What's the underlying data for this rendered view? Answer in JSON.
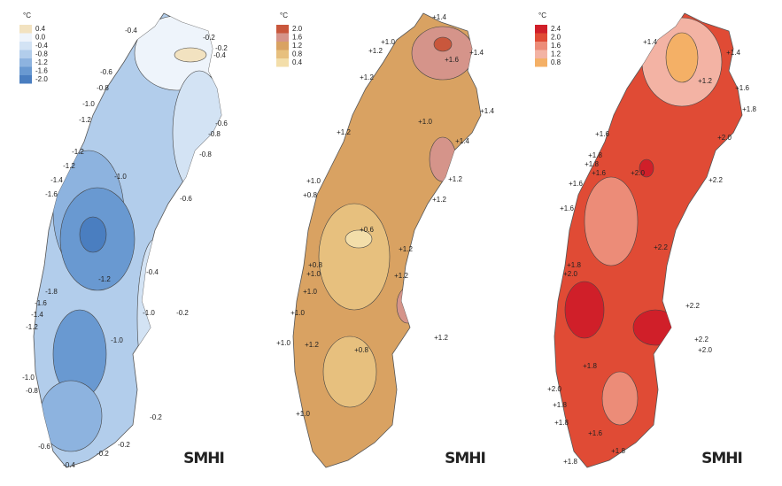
{
  "maps": [
    {
      "legend": {
        "unit": "°C",
        "items": [
          {
            "label": "0.4",
            "color": "#f2e2c0"
          },
          {
            "label": "0.0",
            "color": "#eef4fb"
          },
          {
            "label": "-0.4",
            "color": "#d3e3f4"
          },
          {
            "label": "-0.8",
            "color": "#b2cdeb"
          },
          {
            "label": "-1.2",
            "color": "#8db3df"
          },
          {
            "label": "-1.6",
            "color": "#6999d1"
          },
          {
            "label": "-2.0",
            "color": "#4a7ec0"
          }
        ]
      },
      "labels": [
        "-0.4",
        "-0.2",
        "-0.2",
        "-0.4",
        "-0.6",
        "-0.8",
        "-1.0",
        "-1.2",
        "-0.6",
        "-0.8",
        "-1.2",
        "-0.8",
        "-1.2",
        "-1.4",
        "-1.0",
        "-1.6",
        "-0.6",
        "-1.2",
        "-0.4",
        "-1.8",
        "-1.6",
        "-1.4",
        "-1.0",
        "-0.2",
        "-1.2",
        "-1.0",
        "-1.0",
        "-0.8",
        "-0.2",
        "-0.6",
        "-0.2",
        "-0.2",
        "-0.4"
      ],
      "brand": "SMHI"
    },
    {
      "legend": {
        "unit": "°C",
        "items": [
          {
            "label": "2.0",
            "color": "#c9573c"
          },
          {
            "label": "1.6",
            "color": "#d5948a"
          },
          {
            "label": "1.2",
            "color": "#d9a262"
          },
          {
            "label": "0.8",
            "color": "#e7c07e"
          },
          {
            "label": "0.4",
            "color": "#f3deaa"
          }
        ]
      },
      "labels": [
        "+1.4",
        "+1.0",
        "+1.2",
        "+1.6",
        "+1.4",
        "+1.2",
        "+1.0",
        "+1.4",
        "+1.2",
        "+1.4",
        "+1.0",
        "+1.2",
        "+0.8",
        "+1.2",
        "+0.6",
        "+1.2",
        "+0.8",
        "+1.0",
        "+1.2",
        "+1.0",
        "+1.0",
        "+1.0",
        "+1.2",
        "+0.8",
        "+1.2",
        "+1.0"
      ],
      "brand": "SMHI"
    },
    {
      "legend": {
        "unit": "°C",
        "items": [
          {
            "label": "2.4",
            "color": "#d01f29"
          },
          {
            "label": "2.0",
            "color": "#e04b35"
          },
          {
            "label": "1.6",
            "color": "#ec8c78"
          },
          {
            "label": "1.2",
            "color": "#f3b3a4"
          },
          {
            "label": "0.8",
            "color": "#f4b066"
          }
        ]
      },
      "labels": [
        "+1.4",
        "+1.4",
        "+1.2",
        "+1.6",
        "+1.8",
        "+1.6",
        "+2.0",
        "+1.8",
        "+1.8",
        "+1.6",
        "+2.0",
        "+1.6",
        "+2.2",
        "+1.6",
        "+2.2",
        "+1.8",
        "+2.0",
        "+2.2",
        "+2.2",
        "+2.0",
        "+1.8",
        "+2.0",
        "+1.8",
        "+1.8",
        "+1.6",
        "+1.8",
        "+1.8"
      ],
      "brand": "SMHI"
    }
  ]
}
